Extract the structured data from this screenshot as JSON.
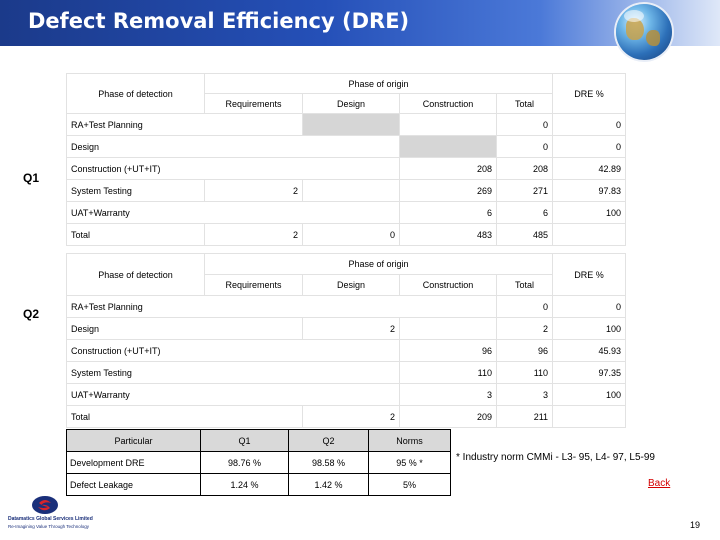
{
  "title": "Defect Removal Efficiency (DRE)",
  "q1": {
    "label": "Q1",
    "phase_detection": "Phase of detection",
    "phase_origin": "Phase of origin",
    "dre_header": "DRE %",
    "col_requirements": "Requirements",
    "col_design": "Design",
    "col_construction": "Construction",
    "col_total": "Total",
    "rows": [
      {
        "phase": "RA+Test Planning",
        "req": "",
        "design": "",
        "construction": "",
        "total": "0",
        "dre": "0"
      },
      {
        "phase": "Design",
        "req": "",
        "design": "",
        "construction": "",
        "total": "0",
        "dre": "0"
      },
      {
        "phase": "Construction (+UT+IT)",
        "req": "",
        "design": "",
        "construction": "208",
        "total": "208",
        "dre": "42.89"
      },
      {
        "phase": "System Testing",
        "req": "2",
        "design": "",
        "construction": "269",
        "total": "271",
        "dre": "97.83"
      },
      {
        "phase": "UAT+Warranty",
        "req": "",
        "design": "",
        "construction": "6",
        "total": "6",
        "dre": "100"
      },
      {
        "phase": "Total",
        "req": "2",
        "design": "0",
        "construction": "483",
        "total": "485",
        "dre": ""
      }
    ]
  },
  "q2": {
    "label": "Q2",
    "phase_detection": "Phase of detection",
    "phase_origin": "Phase of origin",
    "dre_header": "DRE %",
    "col_requirements": "Requirements",
    "col_design": "Design",
    "col_construction": "Construction",
    "col_total": "Total",
    "rows": [
      {
        "phase": "RA+Test Planning",
        "req": "",
        "design": "",
        "construction": "",
        "total": "0",
        "dre": "0"
      },
      {
        "phase": "Design",
        "req": "",
        "design": "2",
        "construction": "",
        "total": "2",
        "dre": "100"
      },
      {
        "phase": "Construction (+UT+IT)",
        "req": "",
        "design": "",
        "construction": "96",
        "total": "96",
        "dre": "45.93"
      },
      {
        "phase": "System Testing",
        "req": "",
        "design": "",
        "construction": "110",
        "total": "110",
        "dre": "97.35"
      },
      {
        "phase": "UAT+Warranty",
        "req": "",
        "design": "",
        "construction": "3",
        "total": "3",
        "dre": "100"
      },
      {
        "phase": "Total",
        "req": "",
        "design": "2",
        "construction": "209",
        "total": "211",
        "dre": ""
      }
    ]
  },
  "summary": {
    "headers": [
      "Particular",
      "Q1",
      "Q2",
      "Norms"
    ],
    "rows": [
      [
        "Development DRE",
        "98.76 %",
        "98.58 %",
        "95 % *"
      ],
      [
        "Defect Leakage",
        "1.24 %",
        "1.42 %",
        "5%"
      ]
    ]
  },
  "industry_note": "* Industry norm CMMi - L3- 95,  L4- 97,  L5-99",
  "back_label": "Back",
  "page_number": "19",
  "logo": {
    "name": "Datamatics Global Services Limited",
    "tagline": "Re-Imagining Value Through Technology"
  },
  "colors": {
    "title_bar": "#2550b8",
    "gray_cell": "#d6d6d6",
    "back_link": "#d40000"
  }
}
